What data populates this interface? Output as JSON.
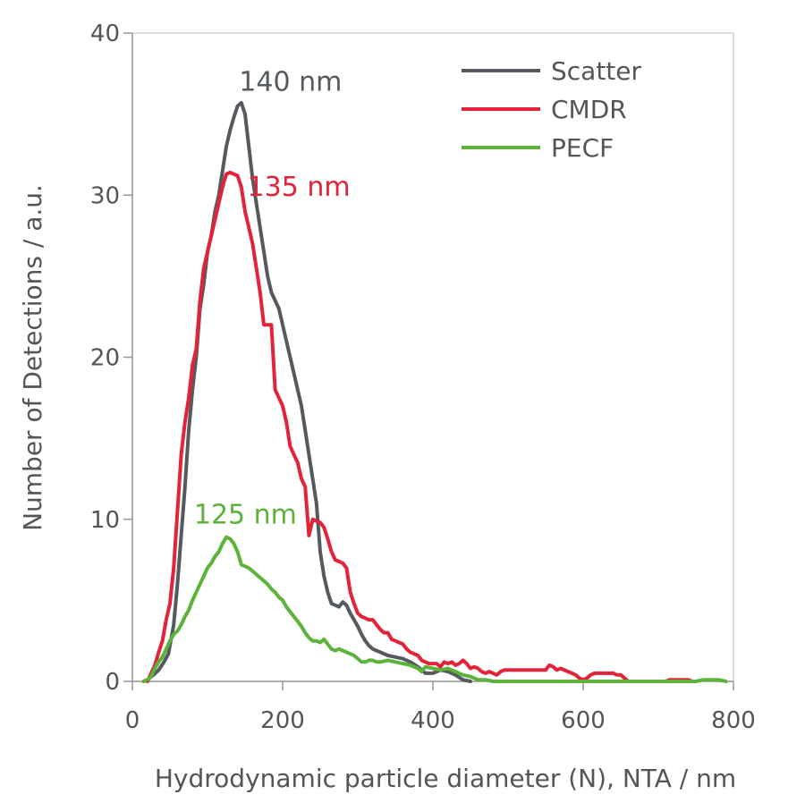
{
  "chart_data": {
    "type": "line",
    "title": "",
    "xlabel": "Hydrodynamic particle diameter (N), NTA / nm",
    "ylabel": "Number of Detections / a.u.",
    "xlim": [
      0,
      800
    ],
    "ylim": [
      0,
      40
    ],
    "x_ticks": [
      "0",
      "200",
      "400",
      "600",
      "800"
    ],
    "y_ticks": [
      "0",
      "10",
      "20",
      "30",
      "40"
    ],
    "grid": false,
    "legend_position": "top-right",
    "series": [
      {
        "name": "Scatter",
        "color": "#555a60",
        "points": [
          [
            15,
            0
          ],
          [
            20,
            0.1
          ],
          [
            28,
            0.4
          ],
          [
            35,
            0.7
          ],
          [
            42,
            1.2
          ],
          [
            48,
            1.7
          ],
          [
            55,
            3.5
          ],
          [
            60,
            6
          ],
          [
            65,
            9
          ],
          [
            70,
            12
          ],
          [
            75,
            15.5
          ],
          [
            80,
            18
          ],
          [
            85,
            20
          ],
          [
            90,
            23
          ],
          [
            95,
            24.5
          ],
          [
            100,
            26.5
          ],
          [
            105,
            27.5
          ],
          [
            110,
            29
          ],
          [
            115,
            30
          ],
          [
            120,
            31.5
          ],
          [
            125,
            33
          ],
          [
            130,
            34
          ],
          [
            135,
            34.8
          ],
          [
            140,
            35.5
          ],
          [
            145,
            35.7
          ],
          [
            150,
            35
          ],
          [
            155,
            33
          ],
          [
            160,
            31
          ],
          [
            165,
            29.5
          ],
          [
            170,
            28
          ],
          [
            175,
            26.5
          ],
          [
            180,
            25
          ],
          [
            185,
            24
          ],
          [
            190,
            23.5
          ],
          [
            195,
            23
          ],
          [
            200,
            22
          ],
          [
            205,
            21
          ],
          [
            210,
            20
          ],
          [
            215,
            19
          ],
          [
            220,
            18
          ],
          [
            225,
            17
          ],
          [
            230,
            15.5
          ],
          [
            235,
            14
          ],
          [
            240,
            12.5
          ],
          [
            245,
            11
          ],
          [
            250,
            8
          ],
          [
            255,
            6.5
          ],
          [
            260,
            5.5
          ],
          [
            265,
            4.8
          ],
          [
            270,
            4.7
          ],
          [
            275,
            4.6
          ],
          [
            280,
            4.9
          ],
          [
            285,
            4.7
          ],
          [
            290,
            4.2
          ],
          [
            295,
            3.8
          ],
          [
            300,
            3.4
          ],
          [
            305,
            2.9
          ],
          [
            310,
            2.5
          ],
          [
            315,
            2.2
          ],
          [
            320,
            2
          ],
          [
            330,
            1.8
          ],
          [
            340,
            1.6
          ],
          [
            350,
            1.5
          ],
          [
            360,
            1.4
          ],
          [
            370,
            1.2
          ],
          [
            380,
            0.9
          ],
          [
            390,
            0.5
          ],
          [
            400,
            0.5
          ],
          [
            410,
            0.7
          ],
          [
            420,
            0.6
          ],
          [
            430,
            0.4
          ],
          [
            440,
            0.1
          ],
          [
            450,
            0
          ]
        ]
      },
      {
        "name": "CMDR",
        "color": "#e2233a",
        "points": [
          [
            20,
            0
          ],
          [
            25,
            0.5
          ],
          [
            30,
            1
          ],
          [
            35,
            1.8
          ],
          [
            40,
            2.5
          ],
          [
            45,
            3.8
          ],
          [
            50,
            4.8
          ],
          [
            55,
            7
          ],
          [
            60,
            10.5
          ],
          [
            65,
            14
          ],
          [
            70,
            16
          ],
          [
            75,
            17.5
          ],
          [
            80,
            19.5
          ],
          [
            85,
            20.5
          ],
          [
            90,
            23.5
          ],
          [
            95,
            25.5
          ],
          [
            100,
            26.5
          ],
          [
            105,
            27.5
          ],
          [
            110,
            28.5
          ],
          [
            115,
            29.5
          ],
          [
            120,
            30.5
          ],
          [
            125,
            31.3
          ],
          [
            130,
            31.4
          ],
          [
            135,
            31.3
          ],
          [
            140,
            31.2
          ],
          [
            145,
            30.5
          ],
          [
            150,
            29
          ],
          [
            155,
            28
          ],
          [
            160,
            27
          ],
          [
            165,
            25.5
          ],
          [
            170,
            24
          ],
          [
            175,
            22
          ],
          [
            180,
            22
          ],
          [
            185,
            22
          ],
          [
            190,
            18
          ],
          [
            195,
            17.5
          ],
          [
            200,
            17
          ],
          [
            205,
            16
          ],
          [
            210,
            14.5
          ],
          [
            215,
            14
          ],
          [
            220,
            13.5
          ],
          [
            225,
            12.5
          ],
          [
            230,
            12
          ],
          [
            235,
            9
          ],
          [
            240,
            10
          ],
          [
            245,
            9.9
          ],
          [
            250,
            9.8
          ],
          [
            255,
            9.5
          ],
          [
            260,
            8.8
          ],
          [
            265,
            8
          ],
          [
            270,
            7.5
          ],
          [
            275,
            7.4
          ],
          [
            280,
            7.3
          ],
          [
            285,
            7
          ],
          [
            290,
            5.5
          ],
          [
            295,
            4.8
          ],
          [
            300,
            4.2
          ],
          [
            305,
            4
          ],
          [
            310,
            3.9
          ],
          [
            315,
            3.8
          ],
          [
            320,
            3.8
          ],
          [
            325,
            3.5
          ],
          [
            330,
            3.2
          ],
          [
            335,
            3
          ],
          [
            340,
            3
          ],
          [
            345,
            2.6
          ],
          [
            350,
            2.5
          ],
          [
            355,
            2.4
          ],
          [
            360,
            2.3
          ],
          [
            365,
            2
          ],
          [
            370,
            1.8
          ],
          [
            375,
            1.7
          ],
          [
            380,
            1.6
          ],
          [
            385,
            1.3
          ],
          [
            390,
            1.2
          ],
          [
            395,
            1.1
          ],
          [
            400,
            1.1
          ],
          [
            405,
            1.1
          ],
          [
            410,
            0.9
          ],
          [
            415,
            1.2
          ],
          [
            420,
            1.1
          ],
          [
            425,
            1.2
          ],
          [
            430,
            1
          ],
          [
            435,
            1.1
          ],
          [
            440,
            1.3
          ],
          [
            445,
            1.1
          ],
          [
            450,
            0.8
          ],
          [
            455,
            0.9
          ],
          [
            460,
            0.8
          ],
          [
            465,
            0.6
          ],
          [
            470,
            0.5
          ],
          [
            475,
            0.6
          ],
          [
            480,
            0.5
          ],
          [
            485,
            0.4
          ],
          [
            490,
            0.6
          ],
          [
            495,
            0.7
          ],
          [
            500,
            0.7
          ],
          [
            510,
            0.7
          ],
          [
            520,
            0.7
          ],
          [
            530,
            0.7
          ],
          [
            540,
            0.7
          ],
          [
            550,
            0.7
          ],
          [
            555,
            1
          ],
          [
            560,
            0.9
          ],
          [
            565,
            0.7
          ],
          [
            570,
            0.8
          ],
          [
            575,
            0.7
          ],
          [
            580,
            0.6
          ],
          [
            585,
            0.5
          ],
          [
            590,
            0.4
          ],
          [
            595,
            0.2
          ],
          [
            600,
            0.1
          ],
          [
            605,
            0.2
          ],
          [
            610,
            0.4
          ],
          [
            615,
            0.5
          ],
          [
            620,
            0.5
          ],
          [
            630,
            0.5
          ],
          [
            640,
            0.5
          ],
          [
            645,
            0.4
          ],
          [
            650,
            0.4
          ],
          [
            655,
            0.2
          ],
          [
            660,
            0
          ],
          [
            670,
            0
          ],
          [
            710,
            0
          ],
          [
            715,
            0.1
          ],
          [
            720,
            0.1
          ],
          [
            730,
            0.1
          ],
          [
            740,
            0.1
          ],
          [
            745,
            0
          ]
        ]
      },
      {
        "name": "PECF",
        "color": "#5bb33a",
        "points": [
          [
            15,
            0
          ],
          [
            20,
            0.1
          ],
          [
            25,
            0.3
          ],
          [
            30,
            0.8
          ],
          [
            35,
            1.2
          ],
          [
            40,
            1.5
          ],
          [
            45,
            2
          ],
          [
            50,
            2.5
          ],
          [
            55,
            2.9
          ],
          [
            60,
            3.1
          ],
          [
            65,
            3.5
          ],
          [
            70,
            4
          ],
          [
            75,
            4.4
          ],
          [
            80,
            5
          ],
          [
            85,
            5.5
          ],
          [
            90,
            6
          ],
          [
            95,
            6.5
          ],
          [
            100,
            7
          ],
          [
            105,
            7.3
          ],
          [
            110,
            7.7
          ],
          [
            115,
            8
          ],
          [
            120,
            8.5
          ],
          [
            125,
            8.9
          ],
          [
            130,
            8.8
          ],
          [
            135,
            8.5
          ],
          [
            140,
            8
          ],
          [
            145,
            7.2
          ],
          [
            150,
            7.1
          ],
          [
            155,
            7
          ],
          [
            160,
            6.8
          ],
          [
            165,
            6.6
          ],
          [
            170,
            6.4
          ],
          [
            175,
            6.2
          ],
          [
            180,
            6
          ],
          [
            185,
            5.7
          ],
          [
            190,
            5.5
          ],
          [
            195,
            5.2
          ],
          [
            200,
            5
          ],
          [
            205,
            4.6
          ],
          [
            210,
            4.3
          ],
          [
            215,
            4
          ],
          [
            220,
            3.7
          ],
          [
            225,
            3.4
          ],
          [
            230,
            3
          ],
          [
            235,
            2.7
          ],
          [
            240,
            2.5
          ],
          [
            245,
            2.5
          ],
          [
            250,
            2.4
          ],
          [
            255,
            2.6
          ],
          [
            260,
            2.3
          ],
          [
            265,
            2
          ],
          [
            270,
            1.9
          ],
          [
            275,
            2
          ],
          [
            280,
            1.9
          ],
          [
            285,
            1.8
          ],
          [
            290,
            1.7
          ],
          [
            295,
            1.6
          ],
          [
            300,
            1.4
          ],
          [
            305,
            1.2
          ],
          [
            310,
            1.2
          ],
          [
            315,
            1.3
          ],
          [
            320,
            1.3
          ],
          [
            325,
            1.2
          ],
          [
            330,
            1.2
          ],
          [
            340,
            1.3
          ],
          [
            350,
            1.2
          ],
          [
            360,
            1.1
          ],
          [
            370,
            1
          ],
          [
            380,
            0.8
          ],
          [
            385,
            0.6
          ],
          [
            390,
            0.9
          ],
          [
            400,
            0.8
          ],
          [
            410,
            0.7
          ],
          [
            420,
            0.8
          ],
          [
            430,
            0.6
          ],
          [
            440,
            0.4
          ],
          [
            450,
            0.3
          ],
          [
            460,
            0.1
          ],
          [
            470,
            0.1
          ],
          [
            480,
            0
          ],
          [
            750,
            0
          ],
          [
            760,
            0.1
          ],
          [
            780,
            0.1
          ],
          [
            790,
            0
          ]
        ]
      }
    ],
    "annotations": [
      {
        "text": "140 nm",
        "color": "#555a60",
        "x": 142,
        "y": 37
      },
      {
        "text": "135 nm",
        "color": "#e2233a",
        "x": 153,
        "y": 30.5
      },
      {
        "text": "125 nm",
        "color": "#5bb33a",
        "x": 82,
        "y": 10.3
      }
    ]
  }
}
